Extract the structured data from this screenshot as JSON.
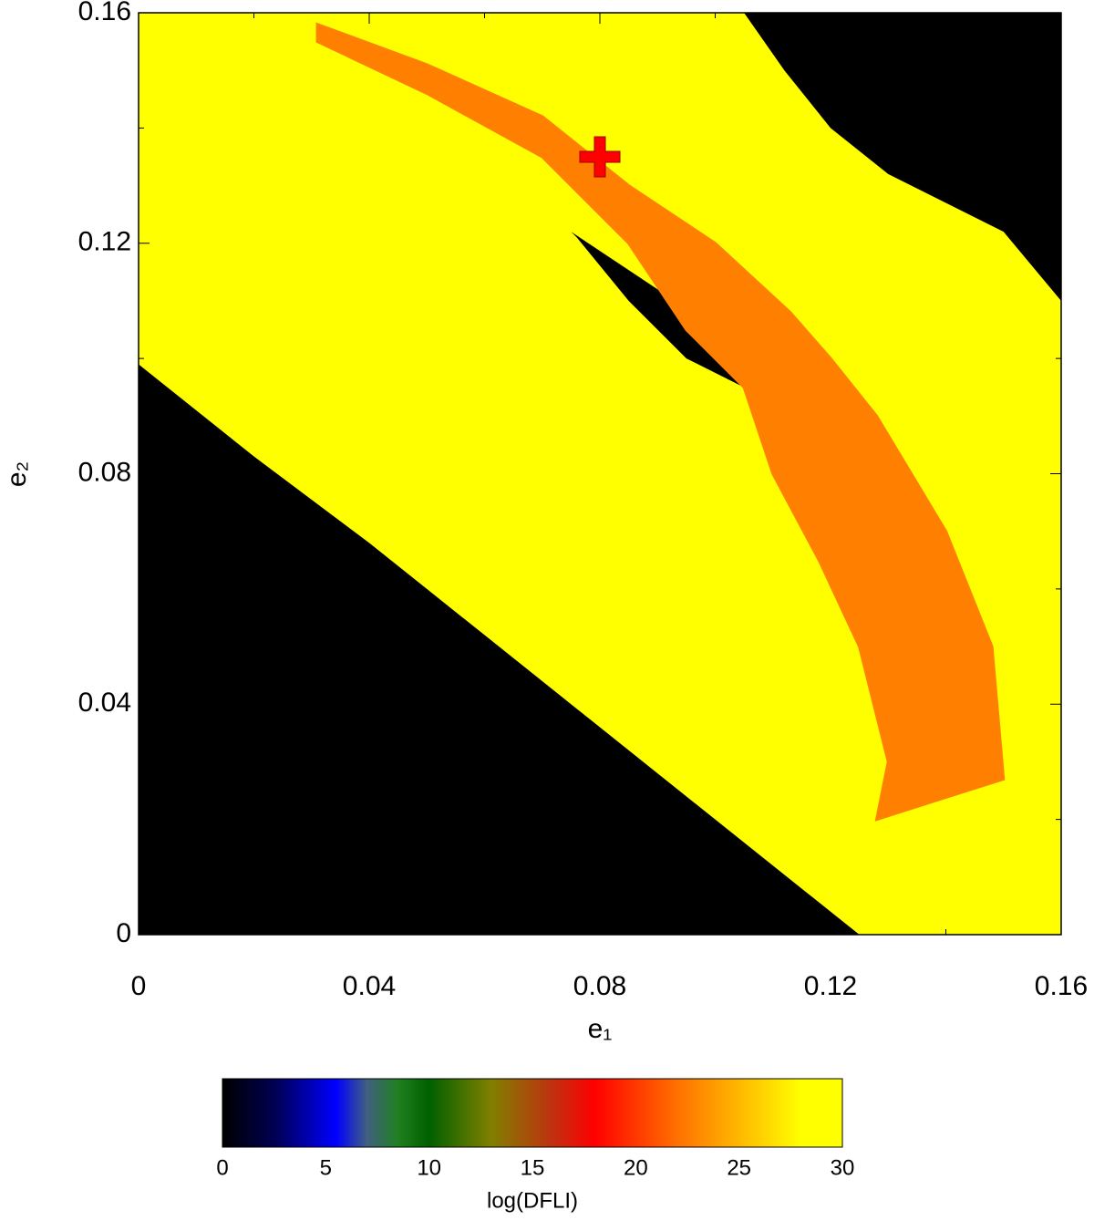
{
  "chart_data": {
    "type": "heatmap",
    "xlabel": "e₁",
    "ylabel": "e₂",
    "xlim": [
      0,
      0.16
    ],
    "ylim": [
      0,
      0.16
    ],
    "xticks": [
      0,
      0.04,
      0.08,
      0.12,
      0.16
    ],
    "yticks": [
      0,
      0.04,
      0.08,
      0.12,
      0.16
    ],
    "xminor": [
      0.02,
      0.06,
      0.1,
      0.14
    ],
    "yminor": [
      0.02,
      0.06,
      0.1,
      0.14
    ],
    "background_value": 30,
    "regions": [
      {
        "value": 0,
        "points": [
          [
            0,
            0.099
          ],
          [
            0.02,
            0.083
          ],
          [
            0.04,
            0.068
          ],
          [
            0.06,
            0.052
          ],
          [
            0.08,
            0.036
          ],
          [
            0.1,
            0.02
          ],
          [
            0.125,
            0
          ],
          [
            0,
            0
          ]
        ]
      },
      {
        "value": 0,
        "points": [
          [
            0.105,
            0.16
          ],
          [
            0.112,
            0.15
          ],
          [
            0.12,
            0.14
          ],
          [
            0.13,
            0.132
          ],
          [
            0.14,
            0.127
          ],
          [
            0.15,
            0.122
          ],
          [
            0.16,
            0.11
          ],
          [
            0.16,
            0.16
          ]
        ]
      },
      {
        "value": 0,
        "points": [
          [
            0.075,
            0.122
          ],
          [
            0.09,
            0.112
          ],
          [
            0.1,
            0.103
          ],
          [
            0.112,
            0.094
          ],
          [
            0.123,
            0.085
          ],
          [
            0.12,
            0.085
          ],
          [
            0.105,
            0.095
          ],
          [
            0.095,
            0.1
          ],
          [
            0.085,
            0.11
          ],
          [
            0.076,
            0.121
          ]
        ]
      }
    ],
    "orbit": {
      "color": "#ff8000",
      "points": [
        [
          0.031,
          0.158
        ],
        [
          0.05,
          0.151
        ],
        [
          0.07,
          0.142
        ],
        [
          0.085,
          0.13
        ],
        [
          0.1,
          0.12
        ],
        [
          0.113,
          0.108
        ],
        [
          0.12,
          0.1
        ],
        [
          0.128,
          0.09
        ],
        [
          0.14,
          0.07
        ],
        [
          0.148,
          0.05
        ],
        [
          0.15,
          0.027
        ],
        [
          0.128,
          0.02
        ],
        [
          0.13,
          0.03
        ],
        [
          0.125,
          0.05
        ],
        [
          0.118,
          0.065
        ],
        [
          0.11,
          0.08
        ],
        [
          0.105,
          0.095
        ],
        [
          0.095,
          0.105
        ],
        [
          0.085,
          0.12
        ],
        [
          0.07,
          0.135
        ],
        [
          0.05,
          0.146
        ],
        [
          0.031,
          0.155
        ]
      ]
    },
    "marker": {
      "x": 0.08,
      "y": 0.135,
      "color": "#ff0000"
    },
    "colorbar": {
      "label": "log(DFLI)",
      "lim": [
        0,
        30
      ],
      "ticks": [
        0,
        5,
        10,
        15,
        20,
        25,
        30
      ],
      "colorscale": [
        [
          0,
          "#000000"
        ],
        [
          2.5,
          "#000050"
        ],
        [
          5.5,
          "#0000ff"
        ],
        [
          7,
          "#406080"
        ],
        [
          8.5,
          "#208020"
        ],
        [
          10,
          "#006000"
        ],
        [
          13,
          "#808000"
        ],
        [
          16,
          "#c03010"
        ],
        [
          18,
          "#ff0000"
        ],
        [
          22,
          "#ff7000"
        ],
        [
          28,
          "#ffff00"
        ],
        [
          30,
          "#ffff00"
        ]
      ]
    }
  }
}
